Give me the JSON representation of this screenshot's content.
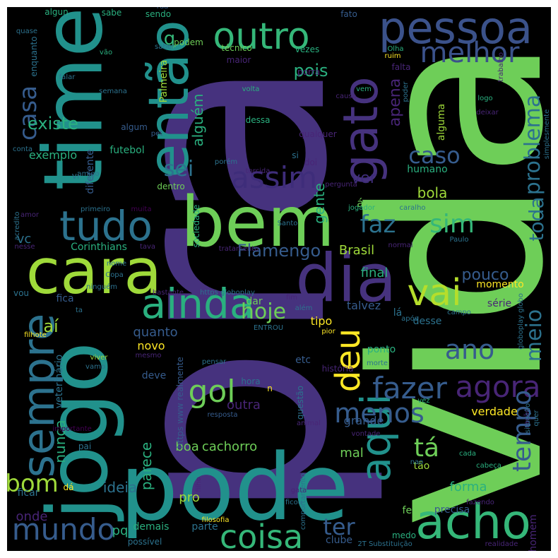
{
  "background": "#000000",
  "palette": {
    "dark_purple": "#46327e",
    "purple": "#3e2d7a",
    "violet": "#482576",
    "blue": "#3b528b",
    "steel": "#365c8d",
    "teal_blue": "#2c728e",
    "teal": "#21918c",
    "sea": "#1f9e89",
    "green_teal": "#2ab07f",
    "green": "#35b779",
    "light_green": "#6ece58",
    "lime": "#9fda3a",
    "yellow_green": "#b5de2b",
    "yellow": "#fde725",
    "deep": "#440154"
  },
  "words": [
    {
      "text": "pra"
    },
    {
      "text": "vida"
    },
    {
      "text": "pode"
    },
    {
      "text": "jogo"
    },
    {
      "text": "time"
    },
    {
      "text": "bem"
    },
    {
      "text": "cara"
    },
    {
      "text": "dia"
    },
    {
      "text": "então"
    },
    {
      "text": "acho"
    },
    {
      "text": "pessoa"
    },
    {
      "text": "gato"
    },
    {
      "text": "sempre"
    },
    {
      "text": "ainda"
    },
    {
      "text": "aqui"
    },
    {
      "text": "tudo"
    },
    {
      "text": "outro"
    },
    {
      "text": "coisa"
    },
    {
      "text": "vai"
    },
    {
      "text": "mundo"
    },
    {
      "text": "agora"
    },
    {
      "text": "assim"
    },
    {
      "text": "fazer"
    },
    {
      "text": "melhor"
    },
    {
      "text": "deu"
    },
    {
      "text": "menos"
    },
    {
      "text": "ano"
    },
    {
      "text": "gol"
    },
    {
      "text": "hoje"
    },
    {
      "text": "sim"
    },
    {
      "text": "faz"
    },
    {
      "text": "tempo"
    },
    {
      "text": "tá"
    },
    {
      "text": "problema"
    },
    {
      "text": "casa"
    },
    {
      "text": "caso"
    },
    {
      "text": "sei"
    },
    {
      "text": "bom"
    },
    {
      "text": "ter"
    },
    {
      "text": "toda"
    },
    {
      "text": "existe"
    },
    {
      "text": "pois"
    },
    {
      "text": "meio"
    },
    {
      "text": "apena"
    },
    {
      "text": "q"
    },
    {
      "text": "ver"
    },
    {
      "text": "Flamengo"
    },
    {
      "text": "ideia"
    },
    {
      "text": "pouco"
    },
    {
      "text": "alguém"
    },
    {
      "text": "gente"
    },
    {
      "text": "bola"
    },
    {
      "text": "aí"
    },
    {
      "text": "nunca"
    },
    {
      "text": "exemplo"
    },
    {
      "text": "boa"
    },
    {
      "text": "cachorro"
    },
    {
      "text": "onde"
    },
    {
      "text": "pq"
    },
    {
      "text": "vc"
    },
    {
      "text": "final"
    },
    {
      "text": "outra"
    },
    {
      "text": "verdade"
    },
    {
      "text": "parece"
    },
    {
      "text": "pro"
    },
    {
      "text": "forma"
    },
    {
      "text": "mal"
    },
    {
      "text": "área"
    },
    {
      "text": "Brasil"
    },
    {
      "text": "Corinthians"
    },
    {
      "text": "diferente"
    },
    {
      "text": "quanto"
    },
    {
      "text": "novo"
    },
    {
      "text": "talvez"
    },
    {
      "text": "tipo"
    },
    {
      "text": "grande"
    },
    {
      "text": "ponto"
    },
    {
      "text": "humano"
    },
    {
      "text": "alguma"
    },
    {
      "text": "Palmeira"
    },
    {
      "text": "futebol"
    },
    {
      "text": "fica"
    },
    {
      "text": "veterinário"
    },
    {
      "text": "dar"
    },
    {
      "text": "clube"
    },
    {
      "text": "tão"
    },
    {
      "text": "fez"
    },
    {
      "text": "precisa"
    },
    {
      "text": "parte"
    },
    {
      "text": "demais"
    },
    {
      "text": "homem"
    },
    {
      "text": "série"
    },
    {
      "text": "desse"
    },
    {
      "text": "momento"
    },
    {
      "text": "lá"
    },
    {
      "text": "etc"
    },
    {
      "text": "dentro"
    },
    {
      "text": "algum"
    },
    {
      "text": "técnico"
    },
    {
      "text": "podem"
    },
    {
      "text": "maior"
    },
    {
      "text": "vezes"
    },
    {
      "text": "fato"
    },
    {
      "text": "porra"
    },
    {
      "text": "falta"
    },
    {
      "text": "sendo"
    },
    {
      "text": "sabe"
    },
    {
      "text": "algun"
    },
    {
      "text": "rua"
    },
    {
      "text": "quase"
    },
    {
      "text": "enquanto"
    },
    {
      "text": "vão"
    },
    {
      "text": "falar"
    },
    {
      "text": "semana"
    },
    {
      "text": "saber"
    },
    {
      "text": "Olha"
    },
    {
      "text": "ruim"
    },
    {
      "text": "trabalho"
    },
    {
      "text": "simplesmente"
    },
    {
      "text": "vem"
    },
    {
      "text": "volta"
    },
    {
      "text": "causa"
    },
    {
      "text": "poder"
    },
    {
      "text": "logo"
    },
    {
      "text": "deixar"
    },
    {
      "text": "dessa"
    },
    {
      "text": "qualquer"
    },
    {
      "text": "conta"
    },
    {
      "text": "amigo"
    },
    {
      "text": "pet"
    },
    {
      "text": "torcida"
    },
    {
      "text": "porém"
    },
    {
      "text": "doi"
    },
    {
      "text": "si"
    },
    {
      "text": "pergunta"
    },
    {
      "text": "acredito"
    },
    {
      "text": "amor"
    },
    {
      "text": "primeiro"
    },
    {
      "text": "muita"
    },
    {
      "text": "sociedade"
    },
    {
      "text": "jogador"
    },
    {
      "text": "caralho"
    },
    {
      "text": "Santo"
    },
    {
      "text": "Paulo"
    },
    {
      "text": "normal"
    },
    {
      "text": "nesse"
    },
    {
      "text": "tava"
    },
    {
      "text": "tratamento"
    },
    {
      "text": "nome"
    },
    {
      "text": "Copa"
    },
    {
      "text": "ninguém"
    },
    {
      "text": "bastante"
    },
    {
      "text": "https globoplay"
    },
    {
      "text": "fim"
    },
    {
      "text": "após"
    },
    {
      "text": "campo"
    },
    {
      "text": "ENTROU"
    },
    {
      "text": "além"
    },
    {
      "text": "ta"
    },
    {
      "text": "filhote"
    },
    {
      "text": "pior"
    },
    {
      "text": "globoplay globo"
    },
    {
      "text": "viver"
    },
    {
      "text": "vamo"
    },
    {
      "text": "mesmo"
    },
    {
      "text": "deve"
    },
    {
      "text": "https www realmente"
    },
    {
      "text": "pensar"
    },
    {
      "text": "hora"
    },
    {
      "text": "n"
    },
    {
      "text": "questão"
    },
    {
      "text": "morte"
    },
    {
      "text": "história"
    },
    {
      "text": "vez"
    },
    {
      "text": "ração"
    },
    {
      "text": "quer"
    },
    {
      "text": "situação"
    },
    {
      "text": "resposta"
    },
    {
      "text": "animal"
    },
    {
      "text": "importante"
    },
    {
      "text": "pai"
    },
    {
      "text": "vontade"
    },
    {
      "text": "nao"
    },
    {
      "text": "cada"
    },
    {
      "text": "comportamento"
    },
    {
      "text": "cabeça"
    },
    {
      "text": "filho"
    },
    {
      "text": "ficar"
    },
    {
      "text": "dá"
    },
    {
      "text": "gata"
    },
    {
      "text": "ficou"
    },
    {
      "text": "fazendo"
    },
    {
      "text": "filosofia"
    },
    {
      "text": "possível"
    },
    {
      "text": "medo"
    },
    {
      "text": "2T Substituição"
    },
    {
      "text": "realidade"
    },
    {
      "text": "vi"
    },
    {
      "text": "vou"
    }
  ]
}
